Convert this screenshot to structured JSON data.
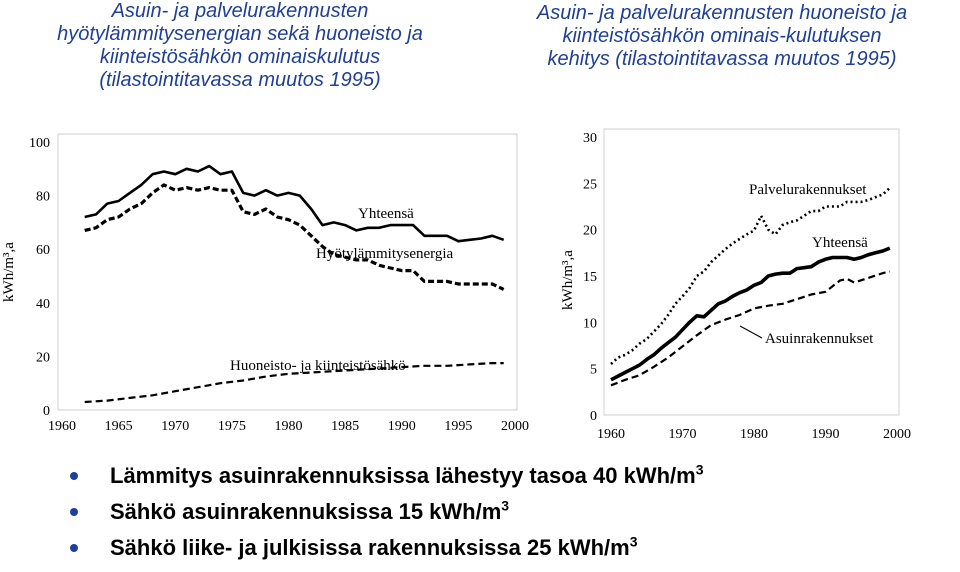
{
  "titles": {
    "left": [
      "Asuin- ja palvelurakennusten",
      "hyötylämmitysenergian sekä huoneisto ja",
      "kiinteistösähkön ominaiskulutus",
      "(tilastointitavassa muutos 1995)"
    ],
    "right": [
      "Asuin- ja palvelurakennusten huoneisto ja",
      "kiinteistösähkön ominais-kulutuksen",
      "kehitys (tilastointitavassa muutos 1995)"
    ]
  },
  "bullets": [
    {
      "text": "Lämmitys asuinrakennuksissa lähestyy tasoa 40 kWh/m",
      "sup": "3"
    },
    {
      "text": "Sähkö asuinrakennuksissa 15 kWh/m",
      "sup": "3"
    },
    {
      "text": "Sähkö liike- ja julkisissa rakennuksissa 25 kWh/m",
      "sup": "3"
    }
  ],
  "colors": {
    "title": "#1f3f9c",
    "bullet": "#1f3f9c",
    "line": "#000000"
  },
  "chart_data": [
    {
      "type": "line",
      "xlabel": "",
      "ylabel": "kWh/m³,a",
      "xlim": [
        1960,
        2000
      ],
      "ylim": [
        0,
        100
      ],
      "xticks": [
        1960,
        1965,
        1970,
        1975,
        1980,
        1985,
        1990,
        1995,
        2000
      ],
      "yticks": [
        0,
        20,
        40,
        60,
        80,
        100
      ],
      "grid": false,
      "series": [
        {
          "name": "Yhteensä",
          "style": "solid",
          "x": [
            1962,
            1963,
            1964,
            1965,
            1966,
            1967,
            1968,
            1969,
            1970,
            1971,
            1972,
            1973,
            1974,
            1975,
            1976,
            1977,
            1978,
            1979,
            1980,
            1981,
            1982,
            1983,
            1984,
            1985,
            1986,
            1987,
            1988,
            1989,
            1990,
            1991,
            1992,
            1993,
            1994,
            1995,
            1996,
            1997,
            1998,
            1999
          ],
          "y": [
            72,
            73,
            77,
            78,
            81,
            84,
            88,
            89,
            88,
            90,
            89,
            91,
            88,
            89,
            81,
            80,
            82,
            80,
            81,
            80,
            75,
            69,
            70,
            69,
            67,
            68,
            68,
            69,
            69,
            69,
            65,
            65,
            65,
            63,
            63.5,
            64,
            65,
            63.5
          ]
        },
        {
          "name": "Hyötylämmitysenergia",
          "style": "dashed",
          "x": [
            1962,
            1963,
            1964,
            1965,
            1966,
            1967,
            1968,
            1969,
            1970,
            1971,
            1972,
            1973,
            1974,
            1975,
            1976,
            1977,
            1978,
            1979,
            1980,
            1981,
            1982,
            1983,
            1984,
            1985,
            1986,
            1987,
            1988,
            1989,
            1990,
            1991,
            1992,
            1993,
            1994,
            1995,
            1996,
            1997,
            1998,
            1999
          ],
          "y": [
            67,
            68,
            71,
            72,
            75,
            77,
            81,
            84,
            82,
            83,
            82,
            83,
            82,
            82,
            74,
            73,
            75,
            72,
            71,
            69,
            65,
            61,
            58,
            57,
            56,
            56,
            54,
            53,
            52,
            52,
            48,
            48,
            48,
            47,
            47,
            47,
            47,
            45
          ]
        },
        {
          "name": "Huoneisto- ja kiinteistösähkö",
          "style": "dashed",
          "x": [
            1962,
            1964,
            1966,
            1968,
            1970,
            1972,
            1974,
            1976,
            1978,
            1980,
            1982,
            1984,
            1986,
            1988,
            1990,
            1992,
            1994,
            1996,
            1998,
            1999
          ],
          "y": [
            3,
            3.5,
            4.5,
            5.5,
            7,
            8.5,
            10,
            11,
            12.5,
            13.5,
            14,
            14.5,
            15,
            15.5,
            16,
            16.5,
            16.5,
            17,
            17.5,
            17.5
          ]
        }
      ],
      "labels": [
        "Yhteensä",
        "Hyötylämmitysenergia",
        "Huoneisto- ja kiinteistösähkö"
      ]
    },
    {
      "type": "line",
      "xlabel": "",
      "ylabel": "kWh/m³,a",
      "xlim": [
        1960,
        2000
      ],
      "ylim": [
        0,
        30
      ],
      "xticks": [
        1960,
        1970,
        1980,
        1990,
        2000
      ],
      "yticks": [
        0,
        5,
        10,
        15,
        20,
        25,
        30
      ],
      "grid": false,
      "series": [
        {
          "name": "Palvelurakennukset",
          "style": "dotted",
          "x": [
            1960,
            1961,
            1962,
            1963,
            1964,
            1965,
            1966,
            1967,
            1968,
            1969,
            1970,
            1971,
            1972,
            1973,
            1974,
            1975,
            1976,
            1977,
            1978,
            1979,
            1980,
            1981,
            1982,
            1983,
            1984,
            1985,
            1986,
            1987,
            1988,
            1989,
            1990,
            1991,
            1992,
            1993,
            1994,
            1995,
            1996,
            1997,
            1998,
            1999
          ],
          "y": [
            5.5,
            6.2,
            6.5,
            7,
            7.7,
            8.2,
            9,
            9.8,
            10.8,
            12,
            12.8,
            13.7,
            15,
            15.5,
            16.5,
            17.2,
            17.9,
            18.5,
            19,
            19.5,
            19.9,
            21.5,
            20,
            19.5,
            20.5,
            20.8,
            21,
            21.5,
            22,
            22,
            22.5,
            22.5,
            22.5,
            23,
            23,
            23,
            23.2,
            23.5,
            23.8,
            24.5
          ]
        },
        {
          "name": "Yhteensä",
          "style": "solid",
          "x": [
            1960,
            1961,
            1962,
            1963,
            1964,
            1965,
            1966,
            1967,
            1968,
            1969,
            1970,
            1971,
            1972,
            1973,
            1974,
            1975,
            1976,
            1977,
            1978,
            1979,
            1980,
            1981,
            1982,
            1983,
            1984,
            1985,
            1986,
            1987,
            1988,
            1989,
            1990,
            1991,
            1992,
            1993,
            1994,
            1995,
            1996,
            1997,
            1998,
            1999
          ],
          "y": [
            3.8,
            4.2,
            4.6,
            5,
            5.4,
            6,
            6.5,
            7.2,
            7.8,
            8.4,
            9.2,
            10,
            10.7,
            10.6,
            11.3,
            12,
            12.3,
            12.8,
            13.2,
            13.5,
            14,
            14.3,
            15,
            15.2,
            15.3,
            15.3,
            15.8,
            15.9,
            16,
            16.5,
            16.8,
            17,
            17,
            17,
            16.8,
            17,
            17.3,
            17.5,
            17.7,
            18
          ]
        },
        {
          "name": "Asuinrakennukset",
          "style": "dashed",
          "x": [
            1960,
            1962,
            1964,
            1966,
            1968,
            1970,
            1972,
            1974,
            1976,
            1978,
            1980,
            1982,
            1984,
            1986,
            1988,
            1990,
            1992,
            1993,
            1994,
            1996,
            1998,
            1999
          ],
          "y": [
            3.2,
            3.8,
            4.3,
            5.2,
            6.2,
            7.4,
            8.6,
            9.7,
            10.3,
            10.8,
            11.5,
            11.8,
            12,
            12.5,
            13,
            13.3,
            14.5,
            14.7,
            14.3,
            14.8,
            15.3,
            15.5
          ]
        }
      ],
      "labels": [
        "Palvelurakennukset",
        "Yhteensä",
        "Asuinrakennukset"
      ]
    }
  ]
}
